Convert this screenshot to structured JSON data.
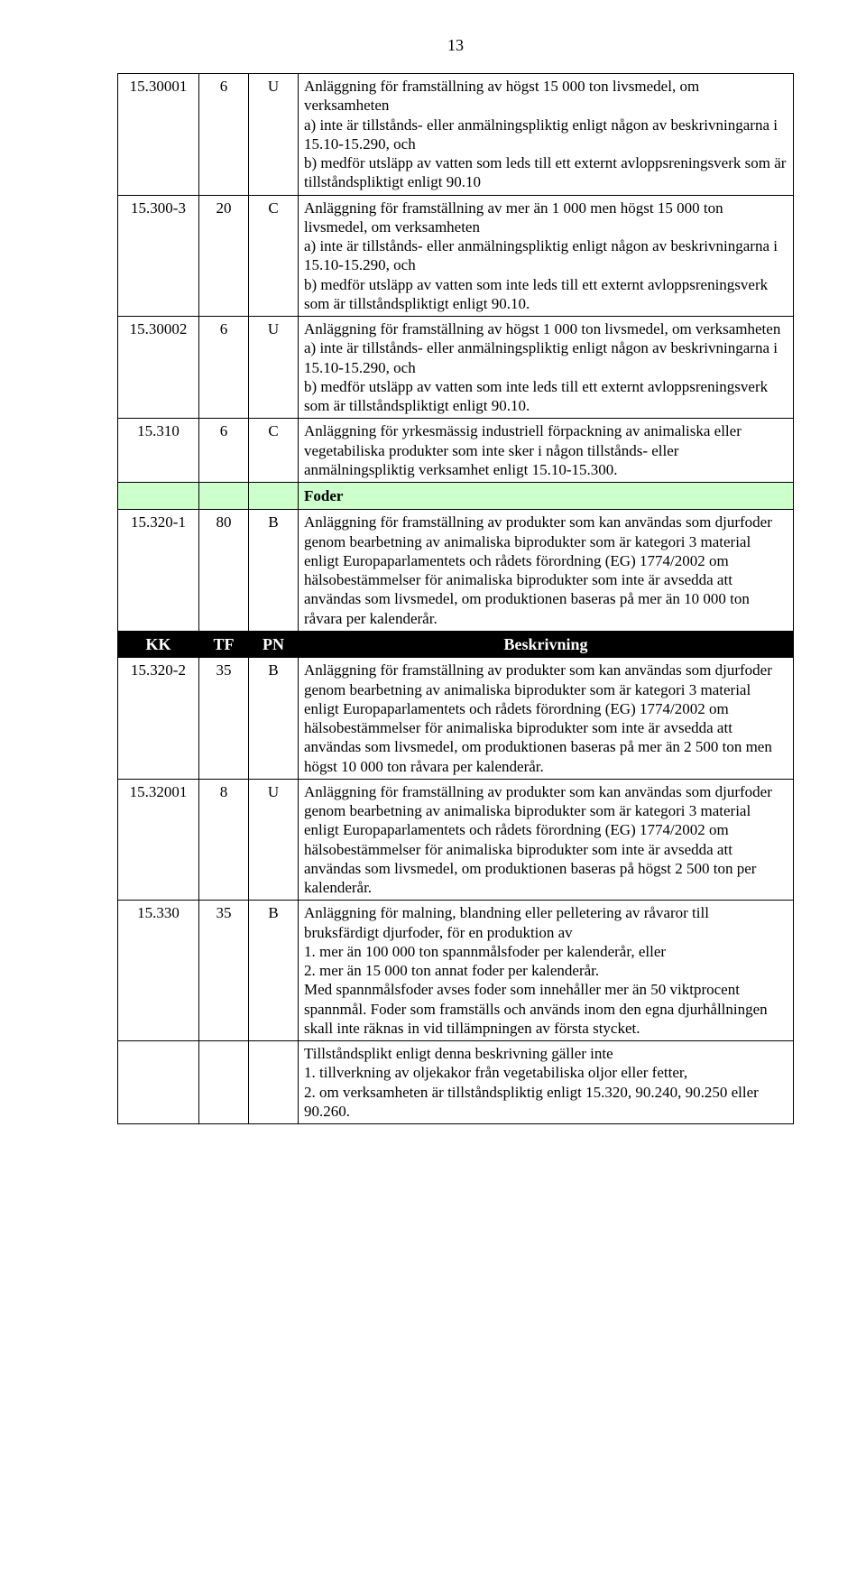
{
  "page_number": "13",
  "colors": {
    "section_bg": "#ccffcc",
    "header_bg": "#000000",
    "header_fg": "#ffffff",
    "border": "#000000",
    "page_bg": "#ffffff",
    "text": "#000000"
  },
  "header_row": {
    "kk": "KK",
    "tf": "TF",
    "pn": "PN",
    "desc": "Beskrivning"
  },
  "section_foder": "Foder",
  "rows": [
    {
      "kk": "15.30001",
      "tf": "6",
      "pn": "U",
      "desc": "Anläggning för framställning av högst 15 000 ton livsmedel, om verksamheten\na) inte är tillstånds- eller anmälningspliktig enligt någon av beskrivningarna i 15.10-15.290, och\nb) medför utsläpp av vatten som leds till ett externt avloppsreningsverk som är tillståndspliktigt enligt 90.10"
    },
    {
      "kk": "15.300-3",
      "tf": "20",
      "pn": "C",
      "desc": "Anläggning för framställning av mer än 1 000 men högst 15 000 ton livsmedel, om verksamheten\na) inte är tillstånds- eller anmälningspliktig enligt någon av beskrivningarna i 15.10-15.290, och\nb) medför utsläpp av vatten som inte leds till ett externt avloppsreningsverk som är tillståndspliktigt enligt 90.10."
    },
    {
      "kk": "15.30002",
      "tf": "6",
      "pn": "U",
      "desc": "Anläggning för framställning av högst 1 000 ton livsmedel, om verksamheten\na) inte är tillstånds- eller anmälningspliktig enligt någon av beskrivningarna i 15.10-15.290, och\nb) medför utsläpp av vatten som inte leds till ett externt avloppsreningsverk som är tillståndspliktigt enligt 90.10."
    },
    {
      "kk": "15.310",
      "tf": "6",
      "pn": "C",
      "desc": "Anläggning för yrkesmässig industriell förpackning av animaliska eller vegetabiliska produkter som inte sker i någon tillstånds- eller anmälningspliktig verksamhet enligt 15.10-15.300."
    },
    {
      "kk": "15.320-1",
      "tf": "80",
      "pn": "B",
      "desc": "Anläggning för framställning av produkter som kan användas som djurfoder genom bearbetning av animaliska biprodukter som är kategori 3 material enligt Europaparlamentets och rådets förordning (EG) 1774/2002 om hälsobestämmelser för animaliska biprodukter som inte är avsedda att användas som livsmedel, om produktionen baseras på mer än 10 000 ton råvara per kalenderår."
    },
    {
      "kk": "15.320-2",
      "tf": "35",
      "pn": "B",
      "desc": "Anläggning för framställning av produkter som kan användas som djurfoder genom bearbetning av animaliska biprodukter som är kategori 3 material enligt Europaparlamentets och rådets förordning (EG) 1774/2002 om hälsobestämmelser för animaliska biprodukter som inte är avsedda att användas som livsmedel, om produktionen baseras på mer än 2 500 ton men högst 10 000 ton råvara per kalenderår."
    },
    {
      "kk": "15.32001",
      "tf": "8",
      "pn": "U",
      "desc": "Anläggning för framställning av produkter som kan användas som djurfoder genom bearbetning av animaliska biprodukter som är kategori 3 material enligt Europaparlamentets och rådets förordning (EG) 1774/2002 om hälsobestämmelser för animaliska biprodukter som inte är avsedda att användas som livsmedel, om produktionen baseras på högst 2 500 ton per kalenderår."
    },
    {
      "kk": "15.330",
      "tf": "35",
      "pn": "B",
      "desc": "Anläggning för malning, blandning eller pelletering av råvaror till bruksfärdigt djurfoder, för en produktion av\n1. mer än 100 000 ton spannmålsfoder per kalenderår, eller\n2. mer än 15 000 ton annat foder per kalenderår.\nMed spannmålsfoder avses foder som innehåller mer än 50 viktprocent spannmål. Foder som framställs och används inom den egna djurhållningen skall inte räknas in vid tillämpningen av första stycket."
    },
    {
      "kk": "",
      "tf": "",
      "pn": "",
      "desc": "Tillståndsplikt enligt denna beskrivning gäller inte\n1. tillverkning av oljekakor från vegetabiliska oljor eller fetter,\n2. om verksamheten är tillståndspliktig enligt 15.320, 90.240, 90.250 eller 90.260."
    }
  ]
}
